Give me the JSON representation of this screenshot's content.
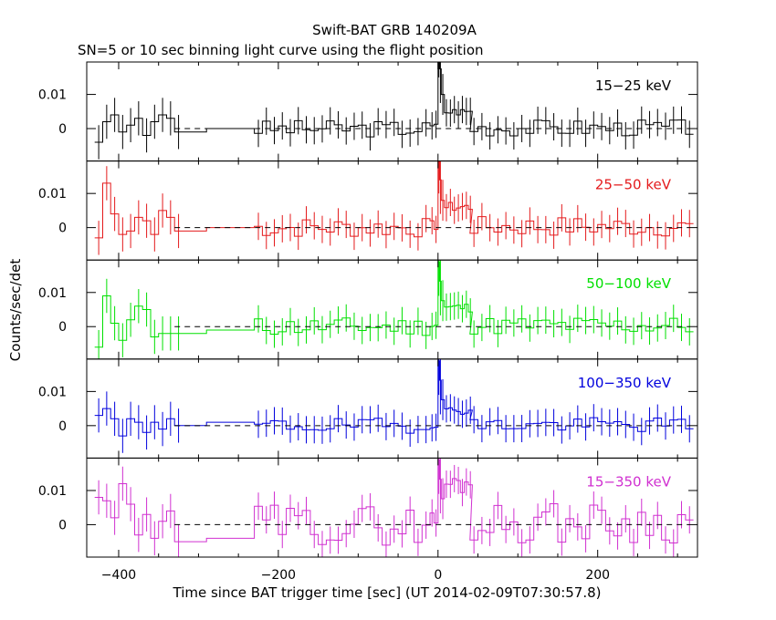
{
  "title": "Swift-BAT GRB 140209A",
  "subtitle": "SN=5 or 10 sec binning light curve using the flight position",
  "chart_data": {
    "type": "line",
    "xlabel": "Time since BAT trigger time [sec] (UT 2014-02-09T07:30:57.8)",
    "ylabel": "Counts/sec/det",
    "xlim": [
      -440,
      325
    ],
    "ylim": [
      -0.0095,
      0.0195
    ],
    "x_ticks": [
      -400,
      -200,
      0,
      200
    ],
    "y_ticks": [
      0,
      0.01
    ],
    "y_tick_labels": [
      "0",
      "0.01"
    ],
    "zero_line": "dashed",
    "panels": [
      {
        "label": "15−25 keV",
        "color": "#000000",
        "amp": 0.0025,
        "peak": 0.025,
        "floor": -0.006,
        "seed": 3,
        "values": [
          -0.004,
          0.002,
          0.004,
          -0.001,
          0.001,
          0.003,
          -0.002,
          0.002,
          0.004,
          0.003,
          -0.001
        ]
      },
      {
        "label": "25−50 keV",
        "color": "#e41a1c",
        "amp": 0.003,
        "peak": 0.02,
        "floor": -0.009,
        "seed": 7,
        "values": [
          -0.003,
          0.013,
          0.004,
          -0.002,
          -0.001,
          0.003,
          0.002,
          -0.002,
          0.005,
          0.003,
          -0.001
        ]
      },
      {
        "label": "50−100 keV",
        "color": "#00e000",
        "amp": 0.0028,
        "peak": 0.019,
        "floor": -0.009,
        "seed": 11,
        "values": [
          -0.006,
          0.009,
          0.001,
          -0.004,
          0.002,
          0.006,
          0.005,
          -0.003,
          -0.002,
          -0.002,
          -0.002
        ]
      },
      {
        "label": "100−350 keV",
        "color": "#0000dd",
        "amp": 0.0022,
        "peak": 0.019,
        "floor": -0.009,
        "seed": 19,
        "values": [
          0.003,
          0.005,
          0.002,
          -0.003,
          0.002,
          0.001,
          -0.002,
          0.001,
          -0.001,
          0.002,
          0.0
        ]
      },
      {
        "label": "15−350 keV",
        "color": "#d030d0",
        "amp": 0.006,
        "peak": 0.019,
        "floor": -0.0095,
        "seed": 29,
        "values": [
          0.008,
          0.007,
          0.002,
          0.012,
          0.006,
          -0.003,
          0.003,
          -0.004,
          0.001,
          0.004,
          -0.005
        ]
      }
    ]
  }
}
